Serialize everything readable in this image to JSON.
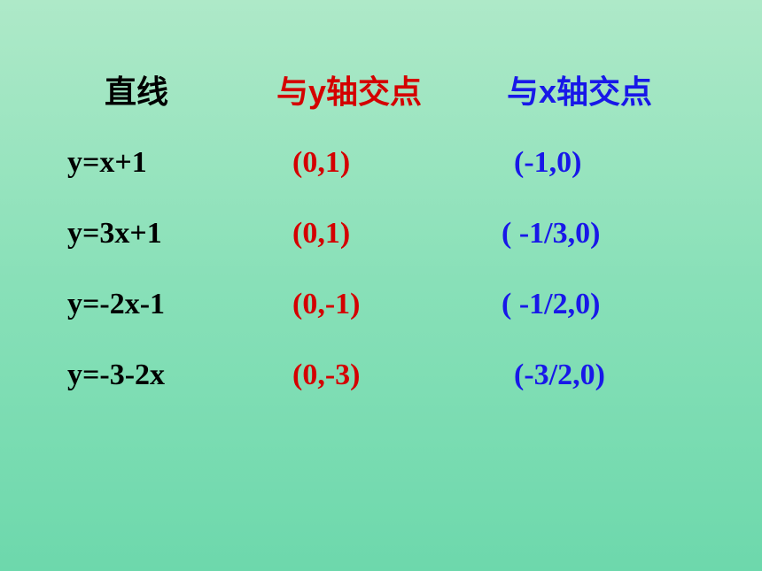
{
  "background": {
    "gradient_top": "#aee9c8",
    "gradient_mid": "#88e0b8",
    "gradient_bottom": "#6dd8ac"
  },
  "colors": {
    "header_col1": "#000000",
    "header_col2": "#d40000",
    "header_col3": "#1818e8",
    "data_col1": "#000000",
    "data_col2": "#d40000",
    "data_col3": "#1818e8"
  },
  "typography": {
    "header_fontsize": 36,
    "header_weight": 900,
    "data_fontsize": 34,
    "data_weight": "bold"
  },
  "table": {
    "headers": {
      "col1": "直线",
      "col2": "与y轴交点",
      "col3": "与x轴交点"
    },
    "rows": [
      {
        "line": "y=x+1",
        "y_intercept": "(0,1)",
        "x_intercept": "(-1,0)"
      },
      {
        "line": "y=3x+1",
        "y_intercept": "(0,1)",
        "x_intercept": "( -1/3,0)"
      },
      {
        "line": "y=-2x-1",
        "y_intercept": "(0,-1)",
        "x_intercept": "( -1/2,0)"
      },
      {
        "line": "y=-3-2x",
        "y_intercept": "(0,-3)",
        "x_intercept": "(-3/2,0)"
      }
    ]
  }
}
